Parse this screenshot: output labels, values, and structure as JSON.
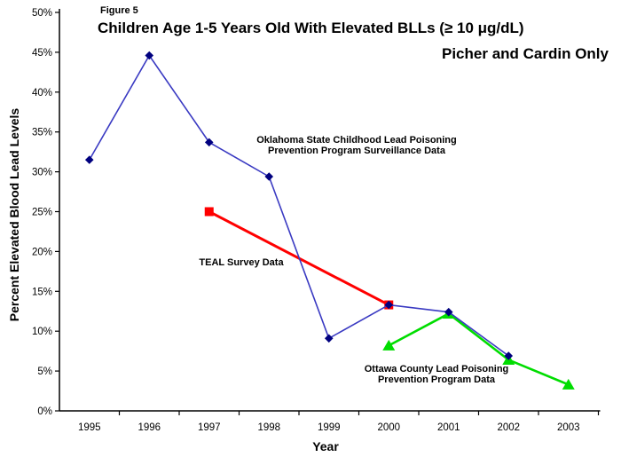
{
  "header": {
    "figure_label": "Figure 5",
    "title": "Children Age 1-5 Years Old With Elevated BLLs (≥ 10 μg/dL)",
    "subtitle": "Picher and Cardin Only"
  },
  "annotations": {
    "oklahoma": {
      "line1": "Oklahoma State Childhood Lead Poisoning",
      "line2": "Prevention Program Surveillance Data"
    },
    "teal": {
      "line1": "TEAL Survey Data"
    },
    "ottawa": {
      "line1": "Ottawa County Lead Poisoning",
      "line2": "Prevention Program Data"
    }
  },
  "chart_data": {
    "type": "line",
    "title": "Children Age 1-5 Years Old With Elevated BLLs (≥ 10 μg/dL)",
    "subtitle": "Picher and Cardin Only",
    "xlabel": "Year",
    "ylabel": "Percent Elevated Blood Lead Levels",
    "ylim": [
      0,
      50
    ],
    "ytick_step": 5,
    "ytick_labels": [
      "0%",
      "5%",
      "10%",
      "15%",
      "20%",
      "25%",
      "30%",
      "35%",
      "40%",
      "45%",
      "50%"
    ],
    "categories": [
      "1995",
      "1996",
      "1997",
      "1998",
      "1999",
      "2000",
      "2001",
      "2002",
      "2003"
    ],
    "grid": false,
    "legend": "inline-annotations",
    "axis_color": "#000000",
    "series": [
      {
        "name": "Oklahoma State Childhood Lead Poisoning Prevention Program Surveillance Data",
        "marker": "diamond",
        "line_color": "#3a3ac2",
        "marker_color": "#00007f",
        "line_width": 1.6,
        "x": [
          1995,
          1996,
          1997,
          1998,
          1999,
          2000,
          2001,
          2002
        ],
        "values": [
          31.5,
          44.6,
          33.7,
          29.4,
          9.1,
          13.3,
          12.4,
          6.9
        ]
      },
      {
        "name": "TEAL Survey Data",
        "marker": "square",
        "line_color": "#ff0000",
        "marker_color": "#ff0000",
        "line_width": 3,
        "x": [
          1997,
          2000
        ],
        "values": [
          25.0,
          13.3
        ]
      },
      {
        "name": "Ottawa County Lead Poisoning Prevention Program Data",
        "marker": "triangle",
        "line_color": "#00dd00",
        "marker_color": "#00dd00",
        "line_width": 2.6,
        "x": [
          2000,
          2001,
          2002,
          2003
        ],
        "values": [
          8.2,
          12.2,
          6.4,
          3.3
        ]
      }
    ]
  }
}
